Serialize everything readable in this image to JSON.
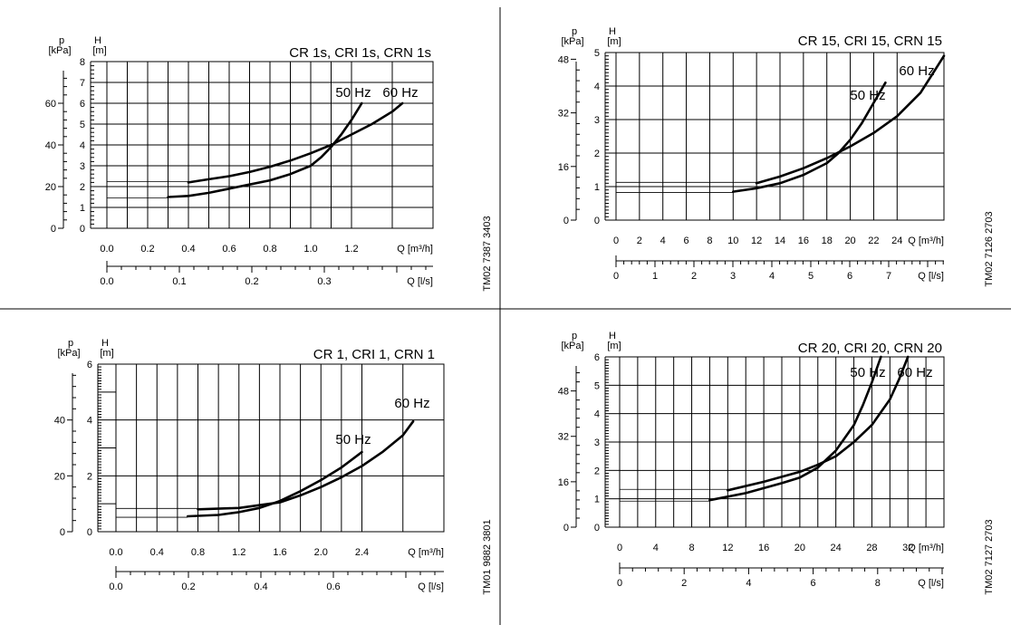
{
  "chart_data": [
    {
      "type": "line",
      "title": "CR 1s, CRI 1s, CRN 1s",
      "code": "TM02 7387 3403",
      "head_label": "H",
      "head_unit": "[m]",
      "pressure_label": "p",
      "pressure_unit": "[kPa]",
      "flow_label": "Q [m³/h]",
      "flow2_label": "Q [l/s]",
      "xlim": [
        0,
        1.6
      ],
      "ylim": [
        0,
        8
      ],
      "x_ticks": [
        "0.0",
        "0.2",
        "0.4",
        "0.6",
        "0.8",
        "1.0",
        "1.2"
      ],
      "y_ticks": [
        "0",
        "1",
        "2",
        "3",
        "4",
        "5",
        "6",
        "7",
        "8"
      ],
      "p_ticks": [
        "0",
        "20",
        "40",
        "60"
      ],
      "q2_ticks": [
        "0.0",
        "0.1",
        "0.2",
        "0.3"
      ],
      "series": [
        {
          "name": "50 Hz",
          "x": [
            0.3,
            0.4,
            0.5,
            0.6,
            0.7,
            0.8,
            0.9,
            1.0,
            1.05,
            1.1,
            1.15,
            1.2,
            1.25
          ],
          "y": [
            1.5,
            1.55,
            1.7,
            1.9,
            2.1,
            2.3,
            2.6,
            3.0,
            3.4,
            3.9,
            4.5,
            5.2,
            6.0
          ]
        },
        {
          "name": "60 Hz",
          "x": [
            0.4,
            0.5,
            0.6,
            0.7,
            0.8,
            0.9,
            1.0,
            1.1,
            1.2,
            1.3,
            1.4,
            1.45
          ],
          "y": [
            2.2,
            2.35,
            2.5,
            2.7,
            2.95,
            3.25,
            3.6,
            4.0,
            4.5,
            5.0,
            5.6,
            6.0
          ]
        }
      ]
    },
    {
      "type": "line",
      "title": "CR 15, CRI 15, CRN 15",
      "code": "TM02 7126 2703",
      "head_label": "H",
      "head_unit": "[m]",
      "pressure_label": "p",
      "pressure_unit": "[kPa]",
      "flow_label": "Q [m³/h]",
      "flow2_label": "Q [l/s]",
      "xlim": [
        0,
        28
      ],
      "ylim": [
        0,
        5
      ],
      "x_ticks": [
        "0",
        "2",
        "4",
        "6",
        "8",
        "10",
        "12",
        "14",
        "16",
        "18",
        "20",
        "22",
        "24"
      ],
      "y_ticks": [
        "0",
        "1",
        "2",
        "3",
        "4",
        "5"
      ],
      "p_ticks": [
        "0",
        "16",
        "32",
        "48"
      ],
      "q2_ticks": [
        "0",
        "1",
        "2",
        "3",
        "4",
        "5",
        "6",
        "7"
      ],
      "series": [
        {
          "name": "50 Hz",
          "x": [
            10,
            12,
            14,
            16,
            18,
            19,
            20,
            21,
            22,
            23
          ],
          "y": [
            0.85,
            0.95,
            1.1,
            1.35,
            1.7,
            2.0,
            2.4,
            2.9,
            3.5,
            4.1
          ]
        },
        {
          "name": "60 Hz",
          "x": [
            12,
            14,
            16,
            18,
            20,
            22,
            24,
            26,
            27,
            28
          ],
          "y": [
            1.1,
            1.3,
            1.55,
            1.85,
            2.2,
            2.6,
            3.1,
            3.8,
            4.35,
            4.9
          ]
        }
      ]
    },
    {
      "type": "line",
      "title": "CR 1, CRI 1, CRN 1",
      "code": "TM01 9882 3801",
      "head_label": "H",
      "head_unit": "[m]",
      "pressure_label": "p",
      "pressure_unit": "[kPa]",
      "flow_label": "Q [m³/h]",
      "flow2_label": "Q [l/s]",
      "xlim": [
        0,
        3.2
      ],
      "ylim": [
        0,
        6
      ],
      "x_ticks": [
        "0.0",
        "0.4",
        "0.8",
        "1.2",
        "1.6",
        "2.0",
        "2.4"
      ],
      "y_ticks": [
        "0",
        "2",
        "4",
        "6"
      ],
      "p_ticks": [
        "0",
        "20",
        "40"
      ],
      "q2_ticks": [
        "0.0",
        "0.2",
        "0.4",
        "0.6"
      ],
      "series": [
        {
          "name": "50 Hz",
          "x": [
            0.7,
            1.0,
            1.2,
            1.4,
            1.6,
            1.8,
            2.0,
            2.2,
            2.4
          ],
          "y": [
            0.55,
            0.6,
            0.7,
            0.85,
            1.1,
            1.45,
            1.85,
            2.3,
            2.85
          ]
        },
        {
          "name": "60 Hz",
          "x": [
            0.8,
            1.2,
            1.6,
            1.8,
            2.0,
            2.2,
            2.4,
            2.6,
            2.8,
            2.9
          ],
          "y": [
            0.8,
            0.85,
            1.05,
            1.3,
            1.6,
            1.95,
            2.35,
            2.85,
            3.45,
            3.95
          ]
        }
      ]
    },
    {
      "type": "line",
      "title": "CR 20, CRI 20, CRN 20",
      "code": "TM02 7127 2703",
      "head_label": "H",
      "head_unit": "[m]",
      "pressure_label": "p",
      "pressure_unit": "[kPa]",
      "flow_label": "Q [m³/h]",
      "flow2_label": "Q [l/s]",
      "xlim": [
        0,
        36
      ],
      "ylim": [
        0,
        6
      ],
      "x_ticks": [
        "0",
        "4",
        "8",
        "12",
        "16",
        "20",
        "24",
        "28",
        "32"
      ],
      "y_ticks": [
        "0",
        "1",
        "2",
        "3",
        "4",
        "5",
        "6"
      ],
      "p_ticks": [
        "0",
        "16",
        "32",
        "48"
      ],
      "q2_ticks": [
        "0",
        "2",
        "4",
        "6",
        "8"
      ],
      "series": [
        {
          "name": "50 Hz",
          "x": [
            10,
            14,
            18,
            20,
            22,
            24,
            26,
            27,
            28,
            29
          ],
          "y": [
            0.95,
            1.2,
            1.55,
            1.75,
            2.1,
            2.7,
            3.6,
            4.3,
            5.1,
            6.0
          ]
        },
        {
          "name": "60 Hz",
          "x": [
            12,
            16,
            20,
            22,
            24,
            26,
            28,
            30,
            31,
            32
          ],
          "y": [
            1.3,
            1.6,
            1.95,
            2.2,
            2.5,
            3.0,
            3.6,
            4.5,
            5.2,
            6.0
          ]
        }
      ]
    }
  ]
}
